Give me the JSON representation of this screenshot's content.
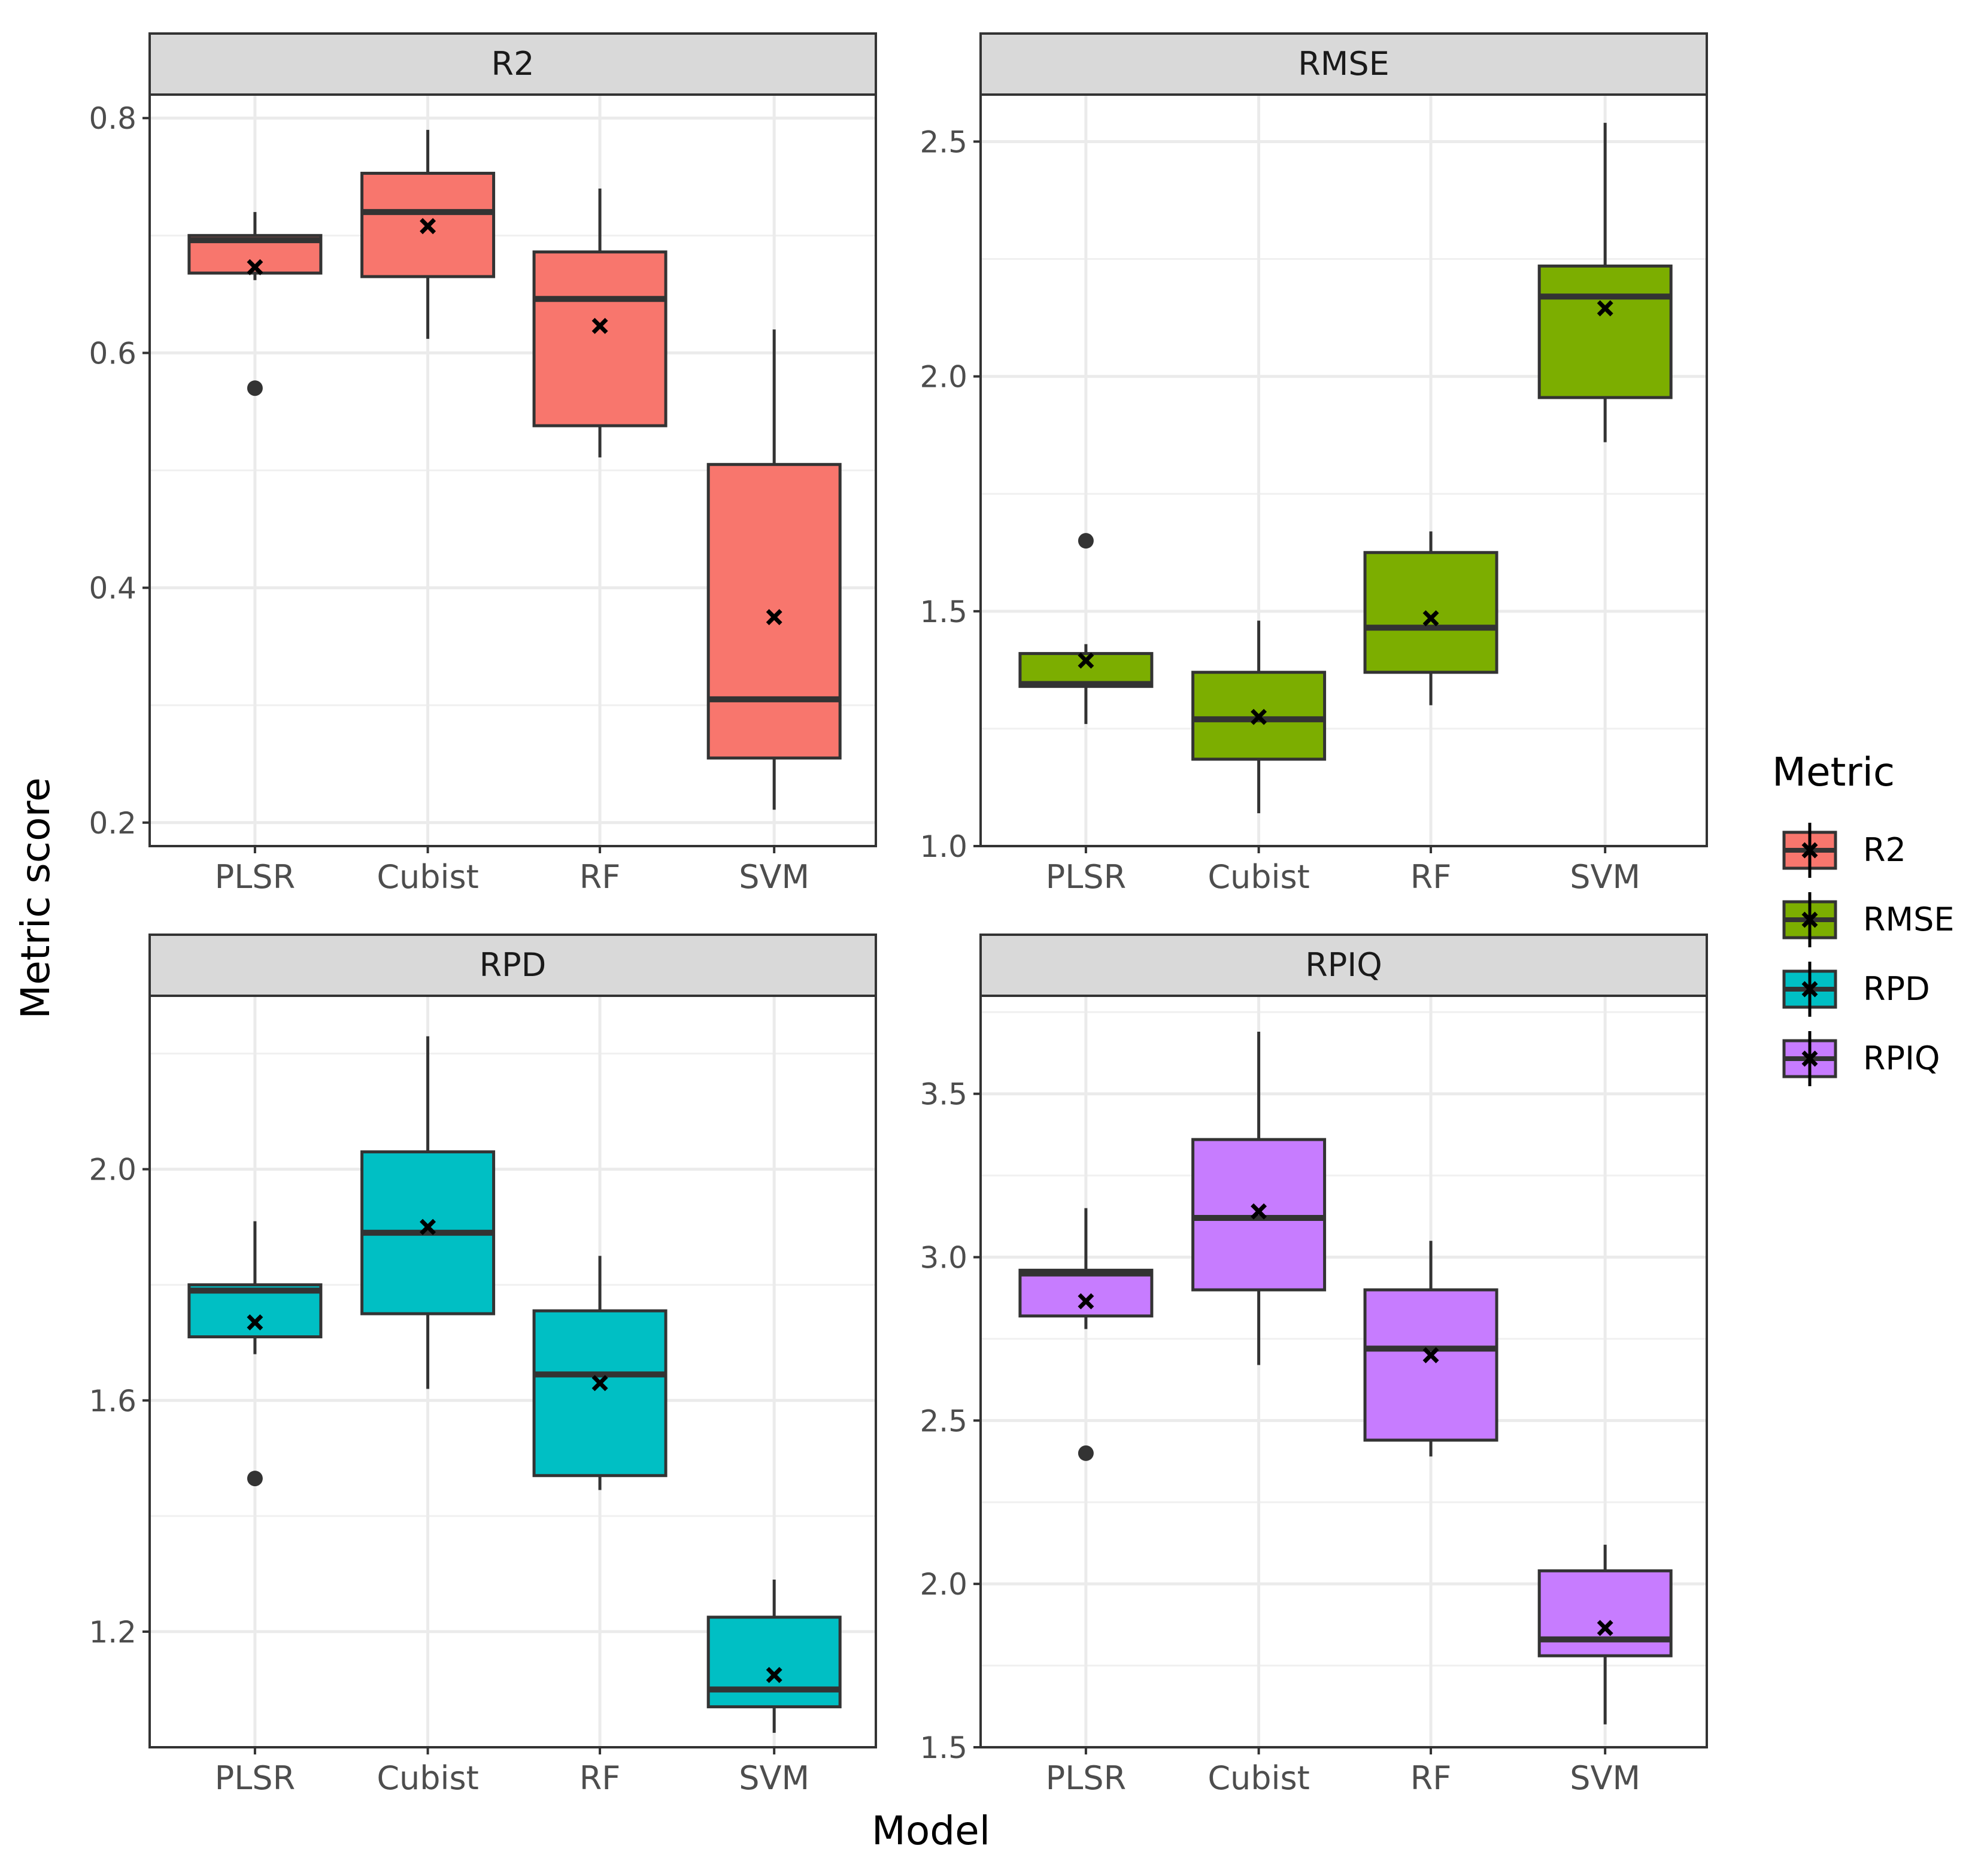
{
  "chart_data": {
    "type": "boxplot",
    "xlabel": "Model",
    "ylabel": "Metric score",
    "categories": [
      "PLSR",
      "Cubist",
      "RF",
      "SVM"
    ],
    "legend": {
      "title": "Metric",
      "position": "right",
      "entries": [
        {
          "label": "R2",
          "color": "#F8766D"
        },
        {
          "label": "RMSE",
          "color": "#7CAE00"
        },
        {
          "label": "RPD",
          "color": "#00BFC4"
        },
        {
          "label": "RPIQ",
          "color": "#C77CFF"
        }
      ]
    },
    "panels": [
      {
        "title": "R2",
        "color": "#F8766D",
        "ylim": [
          0.18,
          0.82
        ],
        "yticks": [
          0.2,
          0.4,
          0.6,
          0.8
        ],
        "ytick_labels": [
          "0.2",
          "0.4",
          "0.6",
          "0.8"
        ],
        "boxes": [
          {
            "model": "PLSR",
            "lower_whisker": 0.662,
            "q1": 0.668,
            "median": 0.696,
            "q3": 0.7,
            "upper_whisker": 0.72,
            "mean": 0.673,
            "outliers": [
              0.57
            ]
          },
          {
            "model": "Cubist",
            "lower_whisker": 0.612,
            "q1": 0.665,
            "median": 0.72,
            "q3": 0.753,
            "upper_whisker": 0.79,
            "mean": 0.708,
            "outliers": []
          },
          {
            "model": "RF",
            "lower_whisker": 0.511,
            "q1": 0.538,
            "median": 0.646,
            "q3": 0.686,
            "upper_whisker": 0.74,
            "mean": 0.623,
            "outliers": []
          },
          {
            "model": "SVM",
            "lower_whisker": 0.211,
            "q1": 0.255,
            "median": 0.305,
            "q3": 0.505,
            "upper_whisker": 0.62,
            "mean": 0.375,
            "outliers": []
          }
        ]
      },
      {
        "title": "RMSE",
        "color": "#7CAE00",
        "ylim": [
          1.0,
          2.6
        ],
        "yticks": [
          1.0,
          1.5,
          2.0,
          2.5
        ],
        "ytick_labels": [
          "1.0",
          "1.5",
          "2.0",
          "2.5"
        ],
        "boxes": [
          {
            "model": "PLSR",
            "lower_whisker": 1.26,
            "q1": 1.34,
            "median": 1.345,
            "q3": 1.41,
            "upper_whisker": 1.43,
            "mean": 1.395,
            "outliers": [
              1.65
            ]
          },
          {
            "model": "Cubist",
            "lower_whisker": 1.07,
            "q1": 1.185,
            "median": 1.27,
            "q3": 1.37,
            "upper_whisker": 1.48,
            "mean": 1.275,
            "outliers": []
          },
          {
            "model": "RF",
            "lower_whisker": 1.3,
            "q1": 1.37,
            "median": 1.465,
            "q3": 1.625,
            "upper_whisker": 1.67,
            "mean": 1.485,
            "outliers": []
          },
          {
            "model": "SVM",
            "lower_whisker": 1.86,
            "q1": 1.955,
            "median": 2.17,
            "q3": 2.235,
            "upper_whisker": 2.54,
            "mean": 2.145,
            "outliers": []
          }
        ]
      },
      {
        "title": "RPD",
        "color": "#00BFC4",
        "ylim": [
          1.0,
          2.3
        ],
        "yticks": [
          1.2,
          1.6,
          2.0
        ],
        "ytick_labels": [
          "1.2",
          "1.6",
          "2.0"
        ],
        "boxes": [
          {
            "model": "PLSR",
            "lower_whisker": 1.68,
            "q1": 1.71,
            "median": 1.79,
            "q3": 1.8,
            "upper_whisker": 1.91,
            "mean": 1.735,
            "outliers": [
              1.465
            ]
          },
          {
            "model": "Cubist",
            "lower_whisker": 1.62,
            "q1": 1.75,
            "median": 1.89,
            "q3": 2.03,
            "upper_whisker": 2.23,
            "mean": 1.9,
            "outliers": []
          },
          {
            "model": "RF",
            "lower_whisker": 1.445,
            "q1": 1.47,
            "median": 1.645,
            "q3": 1.755,
            "upper_whisker": 1.85,
            "mean": 1.63,
            "outliers": []
          },
          {
            "model": "SVM",
            "lower_whisker": 1.025,
            "q1": 1.07,
            "median": 1.1,
            "q3": 1.225,
            "upper_whisker": 1.29,
            "mean": 1.125,
            "outliers": []
          }
        ]
      },
      {
        "title": "RPIQ",
        "color": "#C77CFF",
        "ylim": [
          1.5,
          3.8
        ],
        "yticks": [
          1.5,
          2.0,
          2.5,
          3.0,
          3.5
        ],
        "ytick_labels": [
          "1.5",
          "2.0",
          "2.5",
          "3.0",
          "3.5"
        ],
        "boxes": [
          {
            "model": "PLSR",
            "lower_whisker": 2.78,
            "q1": 2.82,
            "median": 2.95,
            "q3": 2.96,
            "upper_whisker": 3.15,
            "mean": 2.865,
            "outliers": [
              2.4
            ]
          },
          {
            "model": "Cubist",
            "lower_whisker": 2.67,
            "q1": 2.9,
            "median": 3.12,
            "q3": 3.36,
            "upper_whisker": 3.69,
            "mean": 3.14,
            "outliers": []
          },
          {
            "model": "RF",
            "lower_whisker": 2.39,
            "q1": 2.44,
            "median": 2.72,
            "q3": 2.9,
            "upper_whisker": 3.05,
            "mean": 2.7,
            "outliers": []
          },
          {
            "model": "SVM",
            "lower_whisker": 1.57,
            "q1": 1.78,
            "median": 1.83,
            "q3": 2.04,
            "upper_whisker": 2.12,
            "mean": 1.865,
            "outliers": []
          }
        ]
      }
    ]
  }
}
